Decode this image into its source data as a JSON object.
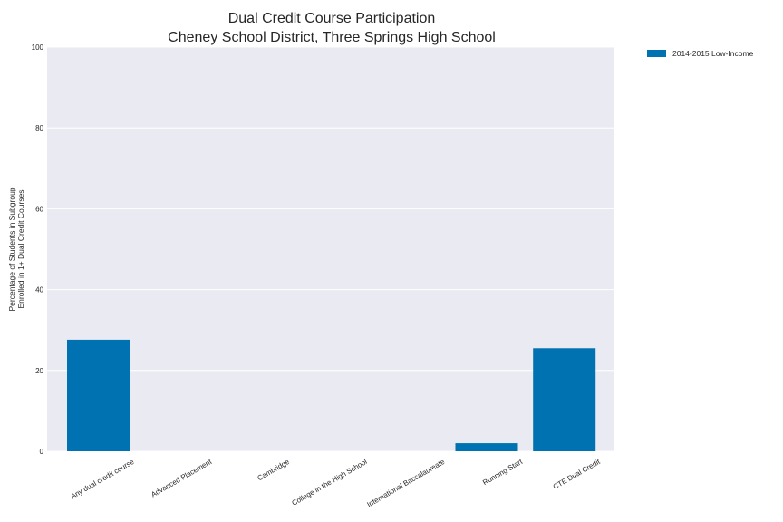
{
  "chart_data": {
    "type": "bar",
    "title": "Dual Credit Course Participation",
    "subtitle": "Cheney School District, Three Springs High School",
    "ylabel_line1": "Percentage of Students in Subgroup",
    "ylabel_line2": "Enrolled in 1+ Dual Credit Courses",
    "xlabel": "",
    "ylim": [
      0,
      100
    ],
    "yticks": [
      0,
      20,
      40,
      60,
      80,
      100
    ],
    "categories": [
      "Any dual credit course",
      "Advanced Placement",
      "Cambridge",
      "College in the High School",
      "International Baccalaureate",
      "Running Start",
      "CTE Dual Credit"
    ],
    "series": [
      {
        "name": "2014-2015 Low-Income",
        "color": "#0072B2",
        "values": [
          27.6,
          0,
          0,
          0,
          0,
          2.0,
          25.5
        ]
      }
    ],
    "grid": true,
    "legend_position": "outside-top-right",
    "background_color": "#EAEAF2"
  }
}
